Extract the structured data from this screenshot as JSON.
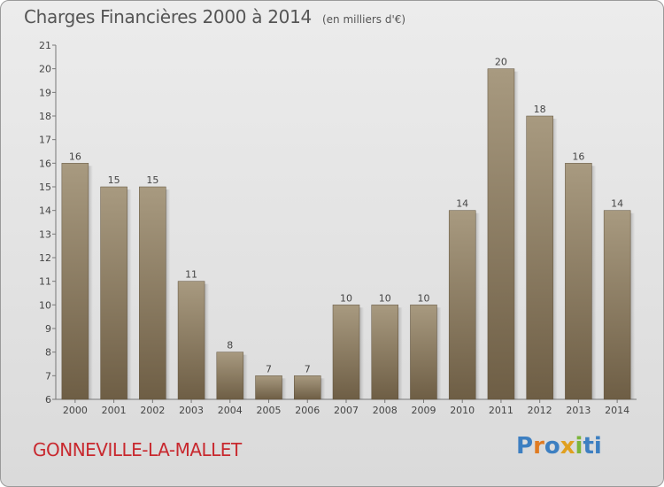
{
  "header": {
    "title": "Charges Financières 2000 à 2014",
    "unit": "(en milliers d'€)"
  },
  "footer": {
    "commune": "GONNEVILLE-LA-MALLET",
    "logo": [
      "P",
      "r",
      "o",
      "x",
      "i",
      "t",
      "i"
    ]
  },
  "colors": {
    "bar_top": "#a89a80",
    "bar_bottom": "#6e5e45",
    "commune": "#c8282e",
    "logo": [
      "#3d7fc1",
      "#e07b22",
      "#3d7fc1",
      "#e0a020",
      "#7bb53a",
      "#3d7fc1",
      "#3d7fc1"
    ]
  },
  "chart_data": {
    "type": "bar",
    "title": "Charges Financières 2000 à 2014",
    "subtitle": "(en milliers d'€)",
    "categories": [
      "2000",
      "2001",
      "2002",
      "2003",
      "2004",
      "2005",
      "2006",
      "2007",
      "2008",
      "2009",
      "2010",
      "2011",
      "2012",
      "2013",
      "2014"
    ],
    "values": [
      16,
      15,
      15,
      11,
      8,
      7,
      7,
      10,
      10,
      10,
      14,
      20,
      18,
      16,
      14
    ],
    "ylim": [
      6,
      21
    ],
    "yticks": [
      6,
      7,
      8,
      9,
      10,
      11,
      12,
      13,
      14,
      15,
      16,
      17,
      18,
      19,
      20,
      21
    ],
    "grid": false,
    "data_labels": true
  }
}
